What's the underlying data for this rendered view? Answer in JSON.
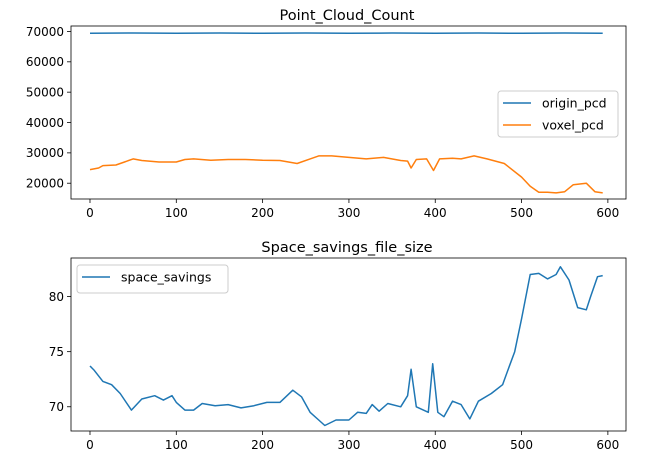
{
  "chart_data": [
    {
      "type": "line",
      "title": "Point_Cloud_Count",
      "xlabel": "",
      "ylabel": "",
      "xlim": [
        -22,
        621
      ],
      "ylim": [
        14800,
        71800
      ],
      "xticks": [
        0,
        100,
        200,
        300,
        400,
        500,
        600
      ],
      "xtick_labels": [
        "0",
        "100",
        "200",
        "300",
        "400",
        "500",
        "600"
      ],
      "yticks": [
        20000,
        30000,
        40000,
        50000,
        60000,
        70000
      ],
      "ytick_labels": [
        "20000",
        "30000",
        "40000",
        "50000",
        "60000",
        "70000"
      ],
      "grid": false,
      "legend_position": "center-right",
      "series": [
        {
          "name": "origin_pcd",
          "color": "#1f77b4",
          "points": [
            [
              0,
              69400
            ],
            [
              50,
              69500
            ],
            [
              100,
              69400
            ],
            [
              150,
              69500
            ],
            [
              200,
              69400
            ],
            [
              250,
              69500
            ],
            [
              300,
              69400
            ],
            [
              350,
              69500
            ],
            [
              400,
              69400
            ],
            [
              450,
              69500
            ],
            [
              500,
              69400
            ],
            [
              550,
              69500
            ],
            [
              594,
              69400
            ]
          ]
        },
        {
          "name": "voxel_pcd",
          "color": "#ff7f0e",
          "points": [
            [
              0,
              24500
            ],
            [
              10,
              25000
            ],
            [
              15,
              25800
            ],
            [
              30,
              26000
            ],
            [
              40,
              27000
            ],
            [
              50,
              28000
            ],
            [
              60,
              27500
            ],
            [
              80,
              27000
            ],
            [
              100,
              27000
            ],
            [
              110,
              27800
            ],
            [
              120,
              28000
            ],
            [
              140,
              27600
            ],
            [
              160,
              27800
            ],
            [
              180,
              27800
            ],
            [
              200,
              27600
            ],
            [
              220,
              27500
            ],
            [
              240,
              26500
            ],
            [
              255,
              28000
            ],
            [
              265,
              29000
            ],
            [
              280,
              29000
            ],
            [
              300,
              28500
            ],
            [
              320,
              28000
            ],
            [
              340,
              28500
            ],
            [
              360,
              27500
            ],
            [
              368,
              27300
            ],
            [
              372,
              25000
            ],
            [
              378,
              27800
            ],
            [
              390,
              28000
            ],
            [
              398,
              24200
            ],
            [
              405,
              28000
            ],
            [
              420,
              28200
            ],
            [
              430,
              28000
            ],
            [
              445,
              29000
            ],
            [
              460,
              28000
            ],
            [
              480,
              26500
            ],
            [
              500,
              22000
            ],
            [
              510,
              19000
            ],
            [
              520,
              17000
            ],
            [
              530,
              17000
            ],
            [
              540,
              16800
            ],
            [
              550,
              17200
            ],
            [
              560,
              19500
            ],
            [
              575,
              20000
            ],
            [
              585,
              17200
            ],
            [
              594,
              16800
            ]
          ]
        }
      ]
    },
    {
      "type": "line",
      "title": "Space_savings_file_size",
      "xlabel": "",
      "ylabel": "",
      "xlim": [
        -22,
        621
      ],
      "ylim": [
        67.8,
        83.5
      ],
      "xticks": [
        0,
        100,
        200,
        300,
        400,
        500,
        600
      ],
      "xtick_labels": [
        "0",
        "100",
        "200",
        "300",
        "400",
        "500",
        "600"
      ],
      "yticks": [
        70,
        75,
        80
      ],
      "ytick_labels": [
        "70",
        "75",
        "80"
      ],
      "grid": false,
      "legend_position": "top-left",
      "series": [
        {
          "name": "space_savings",
          "color": "#1f77b4",
          "points": [
            [
              0,
              73.7
            ],
            [
              5,
              73.3
            ],
            [
              15,
              72.3
            ],
            [
              25,
              72.0
            ],
            [
              35,
              71.2
            ],
            [
              48,
              69.7
            ],
            [
              60,
              70.7
            ],
            [
              75,
              71.0
            ],
            [
              85,
              70.6
            ],
            [
              95,
              71.0
            ],
            [
              100,
              70.4
            ],
            [
              110,
              69.7
            ],
            [
              120,
              69.7
            ],
            [
              130,
              70.3
            ],
            [
              145,
              70.1
            ],
            [
              160,
              70.2
            ],
            [
              175,
              69.9
            ],
            [
              190,
              70.1
            ],
            [
              205,
              70.4
            ],
            [
              220,
              70.4
            ],
            [
              235,
              71.5
            ],
            [
              245,
              70.9
            ],
            [
              255,
              69.5
            ],
            [
              265,
              68.8
            ],
            [
              272,
              68.3
            ],
            [
              285,
              68.8
            ],
            [
              300,
              68.8
            ],
            [
              310,
              69.5
            ],
            [
              320,
              69.4
            ],
            [
              327,
              70.2
            ],
            [
              335,
              69.6
            ],
            [
              345,
              70.3
            ],
            [
              360,
              70.0
            ],
            [
              368,
              71.0
            ],
            [
              372,
              73.4
            ],
            [
              378,
              70.0
            ],
            [
              392,
              69.5
            ],
            [
              397,
              73.9
            ],
            [
              403,
              69.5
            ],
            [
              410,
              69.1
            ],
            [
              420,
              70.5
            ],
            [
              430,
              70.2
            ],
            [
              440,
              68.9
            ],
            [
              450,
              70.5
            ],
            [
              465,
              71.2
            ],
            [
              478,
              72.0
            ],
            [
              485,
              73.5
            ],
            [
              492,
              75.0
            ],
            [
              500,
              78.0
            ],
            [
              510,
              82.0
            ],
            [
              520,
              82.1
            ],
            [
              530,
              81.6
            ],
            [
              540,
              82.0
            ],
            [
              545,
              82.7
            ],
            [
              555,
              81.5
            ],
            [
              565,
              79.0
            ],
            [
              575,
              78.8
            ],
            [
              580,
              80.0
            ],
            [
              588,
              81.8
            ],
            [
              594,
              81.9
            ]
          ]
        }
      ]
    }
  ]
}
